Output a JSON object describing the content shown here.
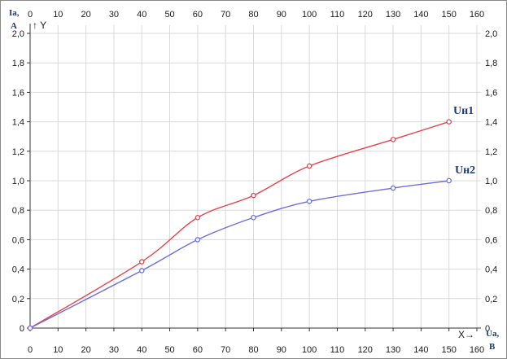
{
  "chart_data": {
    "type": "line",
    "xlim": [
      0,
      160
    ],
    "ylim": [
      0,
      2.0
    ],
    "x_ticks": [
      0,
      10,
      20,
      30,
      40,
      50,
      60,
      70,
      80,
      90,
      100,
      110,
      120,
      130,
      140,
      150,
      160
    ],
    "y_ticks": [
      "0",
      "0,2",
      "0,4",
      "0,6",
      "0,8",
      "1,0",
      "1,2",
      "1,4",
      "1,6",
      "1,8",
      "2,0"
    ],
    "y_tick_values": [
      0,
      0.2,
      0.4,
      0.6,
      0.8,
      1.0,
      1.2,
      1.4,
      1.6,
      1.8,
      2.0
    ],
    "grid": true,
    "x_axis_name": "X→",
    "y_axis_name": "↑ Y",
    "x_unit_label": [
      "Uа,",
      "В"
    ],
    "y_unit_label": [
      "Iа,",
      "А"
    ],
    "series": [
      {
        "name": "Uн1",
        "color": "#e8434a",
        "points": [
          [
            0,
            0
          ],
          [
            40,
            0.45
          ],
          [
            60,
            0.75
          ],
          [
            80,
            0.9
          ],
          [
            100,
            1.1
          ],
          [
            130,
            1.28
          ],
          [
            150,
            1.4
          ]
        ]
      },
      {
        "name": "Uн2",
        "color": "#6b6ee0",
        "points": [
          [
            0,
            0
          ],
          [
            40,
            0.39
          ],
          [
            60,
            0.6
          ],
          [
            80,
            0.75
          ],
          [
            100,
            0.86
          ],
          [
            130,
            0.95
          ],
          [
            150,
            1.0
          ]
        ]
      }
    ]
  }
}
